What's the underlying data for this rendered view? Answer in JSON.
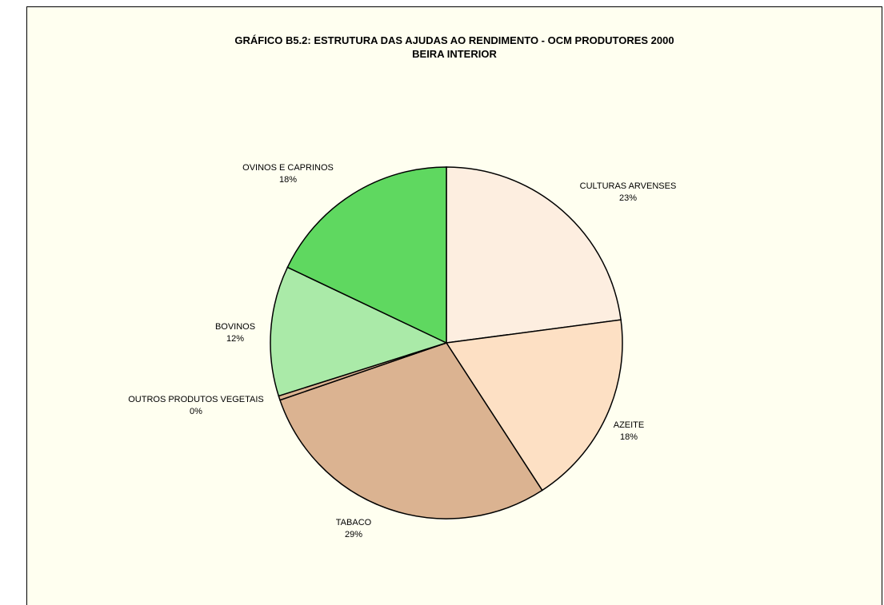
{
  "chart_data": {
    "type": "pie",
    "title": "GRÁFICO B5.2: ESTRUTURA DAS AJUDAS AO RENDIMENTO - OCM PRODUTORES 2000",
    "subtitle": "BEIRA INTERIOR",
    "slices": [
      {
        "label": "CULTURAS ARVENSES",
        "value": 23,
        "display": "23%",
        "color": "#fdeee0"
      },
      {
        "label": "AZEITE",
        "value": 18,
        "display": "18%",
        "color": "#fde0c4"
      },
      {
        "label": "TABACO",
        "value": 29,
        "display": "29%",
        "color": "#dbb391"
      },
      {
        "label": "OUTROS PRODUTOS VEGETAIS",
        "value": 0.4,
        "display": "0%",
        "color": "#dbb391"
      },
      {
        "label": "BOVINOS",
        "value": 12,
        "display": "12%",
        "color": "#aaeaa8"
      },
      {
        "label": "OVINOS E CAPRINOS",
        "value": 18,
        "display": "18%",
        "color": "#5fd860"
      }
    ],
    "start_angle_deg": 0,
    "direction": "clockwise",
    "legend": "none"
  }
}
